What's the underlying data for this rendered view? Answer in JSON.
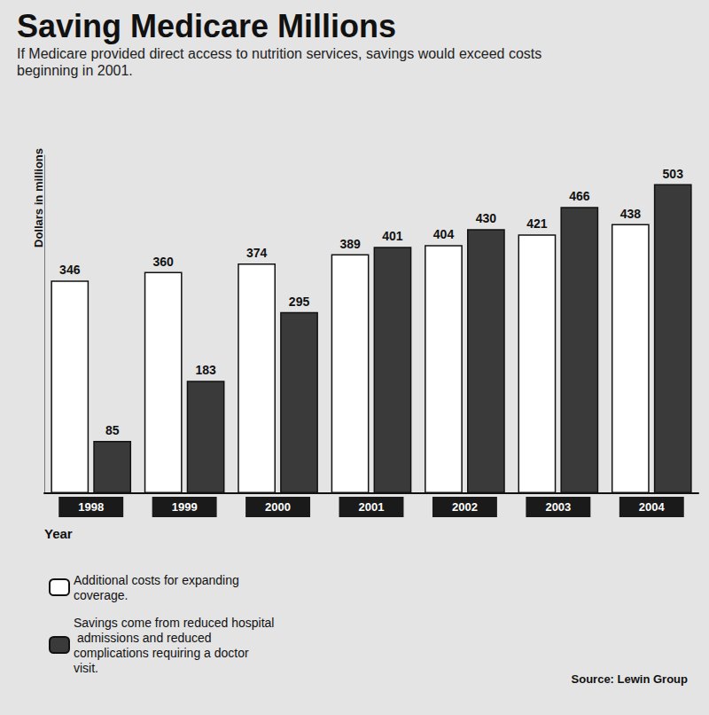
{
  "chart_data": {
    "type": "bar",
    "title": "Saving Medicare Millions",
    "subtitle": "If Medicare provided direct access to nutrition services, savings would exceed costs beginning in 2001.",
    "y_label": "Dollars in millions",
    "x_label": "Year",
    "source": "Source: Lewin Group",
    "categories": [
      "1998",
      "1999",
      "2000",
      "2001",
      "2002",
      "2003",
      "2004"
    ],
    "series": [
      {
        "name": "Additional costs for expanding coverage.",
        "color": "#ffffff",
        "values": [
          346,
          360,
          374,
          389,
          404,
          421,
          438
        ]
      },
      {
        "name": "Savings come from reduced hospital admissions and reduced complications requiring a doctor visit.",
        "color": "#3a3a3a",
        "values": [
          85,
          183,
          295,
          401,
          430,
          466,
          503
        ]
      }
    ],
    "ylim": [
      0,
      550
    ],
    "data_labels": true,
    "tick_labels": "x",
    "legend": "bottom-left"
  }
}
